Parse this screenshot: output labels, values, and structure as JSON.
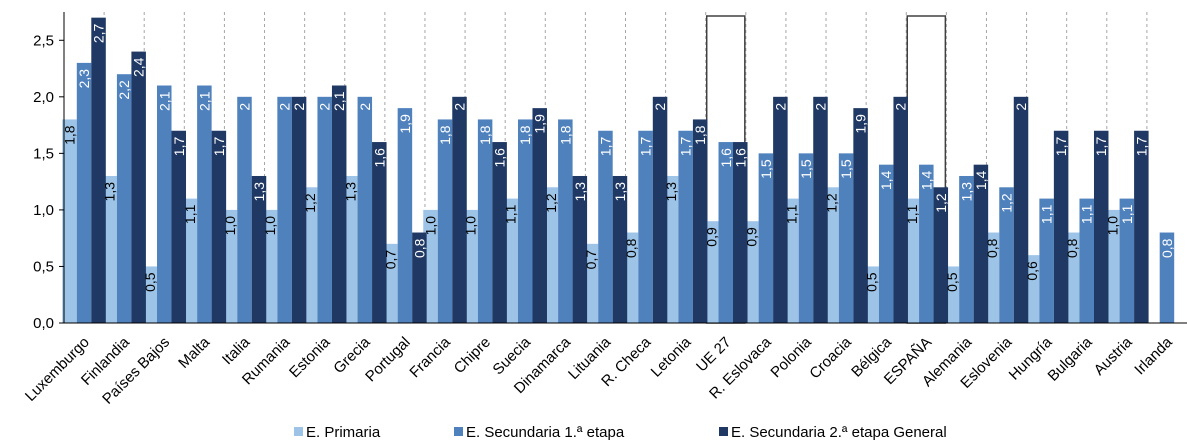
{
  "chart_data": {
    "type": "bar",
    "categories": [
      "Luxemburgo",
      "Finlandia",
      "Países Bajos",
      "Malta",
      "Italia",
      "Rumania",
      "Estonia",
      "Grecia",
      "Portugal",
      "Francia",
      "Chipre",
      "Suecia",
      "Dinamarca",
      "Lituania",
      "R. Checa",
      "Letonia",
      "UE 27",
      "R. Eslovaca",
      "Polonia",
      "Croacia",
      "Bélgica",
      "ESPAÑA",
      "Alemania",
      "Eslovenia",
      "Hungría",
      "Bulgaria",
      "Austria",
      "Irlanda"
    ],
    "series": [
      {
        "name": "E. Primaria",
        "color": "#9dc3e6",
        "values": [
          1.8,
          1.3,
          0.5,
          1.1,
          1.0,
          1.0,
          1.2,
          1.3,
          0.7,
          1.0,
          1.0,
          1.1,
          1.2,
          0.7,
          0.8,
          1.3,
          0.9,
          0.9,
          1.1,
          1.2,
          0.5,
          1.1,
          0.5,
          0.8,
          0.6,
          0.8,
          1.0,
          null
        ],
        "labels": [
          "1,8",
          "1,3",
          "0,5",
          "1,1",
          "1,0",
          "1,0",
          "1,2",
          "1,3",
          "0,7",
          "1,0",
          "1,0",
          "1,1",
          "1,2",
          "0,7",
          "0,8",
          "1,3",
          "0,9",
          "0,9",
          "1,1",
          "1,2",
          "0,5",
          "1,1",
          "0,5",
          "0,8",
          "0,6",
          "0,8",
          "1,0",
          ""
        ]
      },
      {
        "name": "E. Secundaria 1.ª etapa",
        "color": "#4f81bd",
        "values": [
          2.3,
          2.2,
          2.1,
          2.1,
          2.0,
          2.0,
          2.0,
          2.0,
          1.9,
          1.8,
          1.8,
          1.8,
          1.8,
          1.7,
          1.7,
          1.7,
          1.6,
          1.5,
          1.5,
          1.5,
          1.4,
          1.4,
          1.3,
          1.2,
          1.1,
          1.1,
          1.1,
          0.8
        ],
        "labels": [
          "2,3",
          "2,2",
          "2,1",
          "2,1",
          "2",
          "2",
          "2",
          "2",
          "1,9",
          "1,8",
          "1,8",
          "1,8",
          "1,8",
          "1,7",
          "1,7",
          "1,7",
          "1,6",
          "1,5",
          "1,5",
          "1,5",
          "1,4",
          "1,4",
          "1,3",
          "1,2",
          "1,1",
          "1,1",
          "1,1",
          "0,8"
        ]
      },
      {
        "name": "E. Secundaria 2.ª etapa General",
        "color": "#1f3864",
        "values": [
          2.7,
          2.4,
          1.7,
          1.7,
          1.3,
          2.0,
          2.1,
          1.6,
          0.8,
          2.0,
          1.6,
          1.9,
          1.3,
          1.3,
          2.0,
          1.8,
          1.6,
          2.0,
          2.0,
          1.9,
          2.0,
          1.2,
          1.4,
          2.0,
          1.7,
          1.7,
          1.7,
          null
        ],
        "labels": [
          "2,7",
          "2,4",
          "1,7",
          "1,7",
          "1,3",
          "2",
          "2,1",
          "1,6",
          "0,8",
          "2",
          "1,6",
          "1,9",
          "1,3",
          "1,3",
          "2",
          "1,8",
          "1,6",
          "2",
          "2",
          "1,9",
          "2",
          "1,2",
          "1,4",
          "2",
          "1,7",
          "1,7",
          "1,7",
          ""
        ]
      }
    ],
    "highlighted": [
      "UE 27",
      "ESPAÑA"
    ],
    "ylim": [
      0,
      2.75
    ],
    "yticks": [
      0,
      0.5,
      1.0,
      1.5,
      2.0,
      2.5
    ],
    "ytick_labels": [
      "0,0",
      "0,5",
      "1,0",
      "1,5",
      "2,0",
      "2,5"
    ],
    "grid": "vertical dashed separators",
    "legend_position": "bottom",
    "title": "",
    "xlabel": "",
    "ylabel": ""
  }
}
